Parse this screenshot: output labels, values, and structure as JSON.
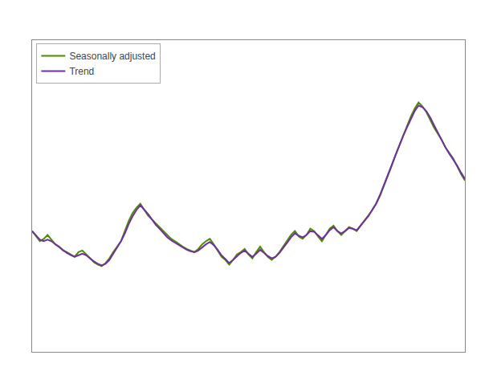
{
  "chart_data": {
    "type": "line",
    "x": [
      0,
      1,
      2,
      3,
      4,
      5,
      6,
      7,
      8,
      9,
      10,
      11,
      12,
      13,
      14,
      15,
      16,
      17,
      18,
      19,
      20,
      21,
      22,
      23,
      24,
      25,
      26,
      27,
      28,
      29,
      30,
      31,
      32,
      33,
      34,
      35,
      36,
      37,
      38,
      39,
      40,
      41,
      42,
      43,
      44,
      45,
      46,
      47,
      48,
      49,
      50,
      51,
      52,
      53,
      54,
      55,
      56,
      57,
      58,
      59,
      60,
      61,
      62,
      63,
      64,
      65,
      66,
      67,
      68,
      69,
      70,
      71,
      72,
      73,
      74,
      75,
      76,
      77,
      78,
      79,
      80,
      81,
      82,
      83,
      84,
      85,
      86,
      87,
      88,
      89,
      90,
      91,
      92,
      93,
      94,
      95,
      96,
      97,
      98,
      99,
      100,
      101,
      102,
      103,
      104,
      105,
      106,
      107,
      108,
      109,
      110,
      111,
      112
    ],
    "series": [
      {
        "name": "Seasonally adjusted",
        "color": "#4d8c00",
        "values": [
          3.55,
          3.48,
          3.42,
          3.45,
          3.5,
          3.44,
          3.38,
          3.35,
          3.3,
          3.28,
          3.25,
          3.22,
          3.28,
          3.3,
          3.25,
          3.2,
          3.15,
          3.12,
          3.1,
          3.14,
          3.2,
          3.28,
          3.35,
          3.42,
          3.55,
          3.68,
          3.78,
          3.85,
          3.9,
          3.82,
          3.75,
          3.7,
          3.65,
          3.6,
          3.55,
          3.5,
          3.45,
          3.42,
          3.38,
          3.35,
          3.32,
          3.3,
          3.28,
          3.32,
          3.38,
          3.42,
          3.45,
          3.38,
          3.3,
          3.22,
          3.18,
          3.12,
          3.18,
          3.25,
          3.28,
          3.32,
          3.25,
          3.2,
          3.28,
          3.35,
          3.28,
          3.22,
          3.18,
          3.22,
          3.28,
          3.35,
          3.42,
          3.5,
          3.55,
          3.48,
          3.45,
          3.5,
          3.58,
          3.55,
          3.48,
          3.42,
          3.5,
          3.58,
          3.62,
          3.55,
          3.5,
          3.55,
          3.6,
          3.58,
          3.55,
          3.62,
          3.68,
          3.75,
          3.82,
          3.9,
          4.0,
          4.12,
          4.25,
          4.38,
          4.52,
          4.65,
          4.78,
          4.9,
          5.02,
          5.12,
          5.2,
          5.15,
          5.08,
          4.98,
          4.88,
          4.8,
          4.72,
          4.62,
          4.55,
          4.48,
          4.38,
          4.28,
          4.2
        ]
      },
      {
        "name": "Trend",
        "color": "#7030a0",
        "values": [
          3.55,
          3.5,
          3.44,
          3.42,
          3.44,
          3.42,
          3.38,
          3.34,
          3.3,
          3.27,
          3.24,
          3.22,
          3.24,
          3.26,
          3.24,
          3.2,
          3.16,
          3.13,
          3.11,
          3.13,
          3.18,
          3.26,
          3.34,
          3.42,
          3.52,
          3.64,
          3.74,
          3.82,
          3.88,
          3.83,
          3.77,
          3.7,
          3.63,
          3.58,
          3.52,
          3.47,
          3.43,
          3.4,
          3.37,
          3.34,
          3.31,
          3.29,
          3.28,
          3.3,
          3.34,
          3.38,
          3.41,
          3.37,
          3.31,
          3.24,
          3.19,
          3.14,
          3.18,
          3.23,
          3.27,
          3.3,
          3.26,
          3.22,
          3.26,
          3.31,
          3.27,
          3.23,
          3.2,
          3.22,
          3.27,
          3.33,
          3.4,
          3.47,
          3.52,
          3.49,
          3.47,
          3.5,
          3.55,
          3.54,
          3.49,
          3.45,
          3.5,
          3.56,
          3.6,
          3.55,
          3.52,
          3.55,
          3.59,
          3.58,
          3.56,
          3.62,
          3.68,
          3.74,
          3.82,
          3.9,
          4.01,
          4.13,
          4.26,
          4.39,
          4.52,
          4.65,
          4.77,
          4.88,
          4.99,
          5.09,
          5.16,
          5.14,
          5.09,
          5.01,
          4.91,
          4.81,
          4.72,
          4.62,
          4.54,
          4.47,
          4.39,
          4.3,
          4.22
        ]
      }
    ],
    "xlim": [
      0,
      112
    ],
    "ylim": [
      2.0,
      6.0
    ],
    "tick_labels": false,
    "grid": false,
    "legend": "upper left"
  }
}
